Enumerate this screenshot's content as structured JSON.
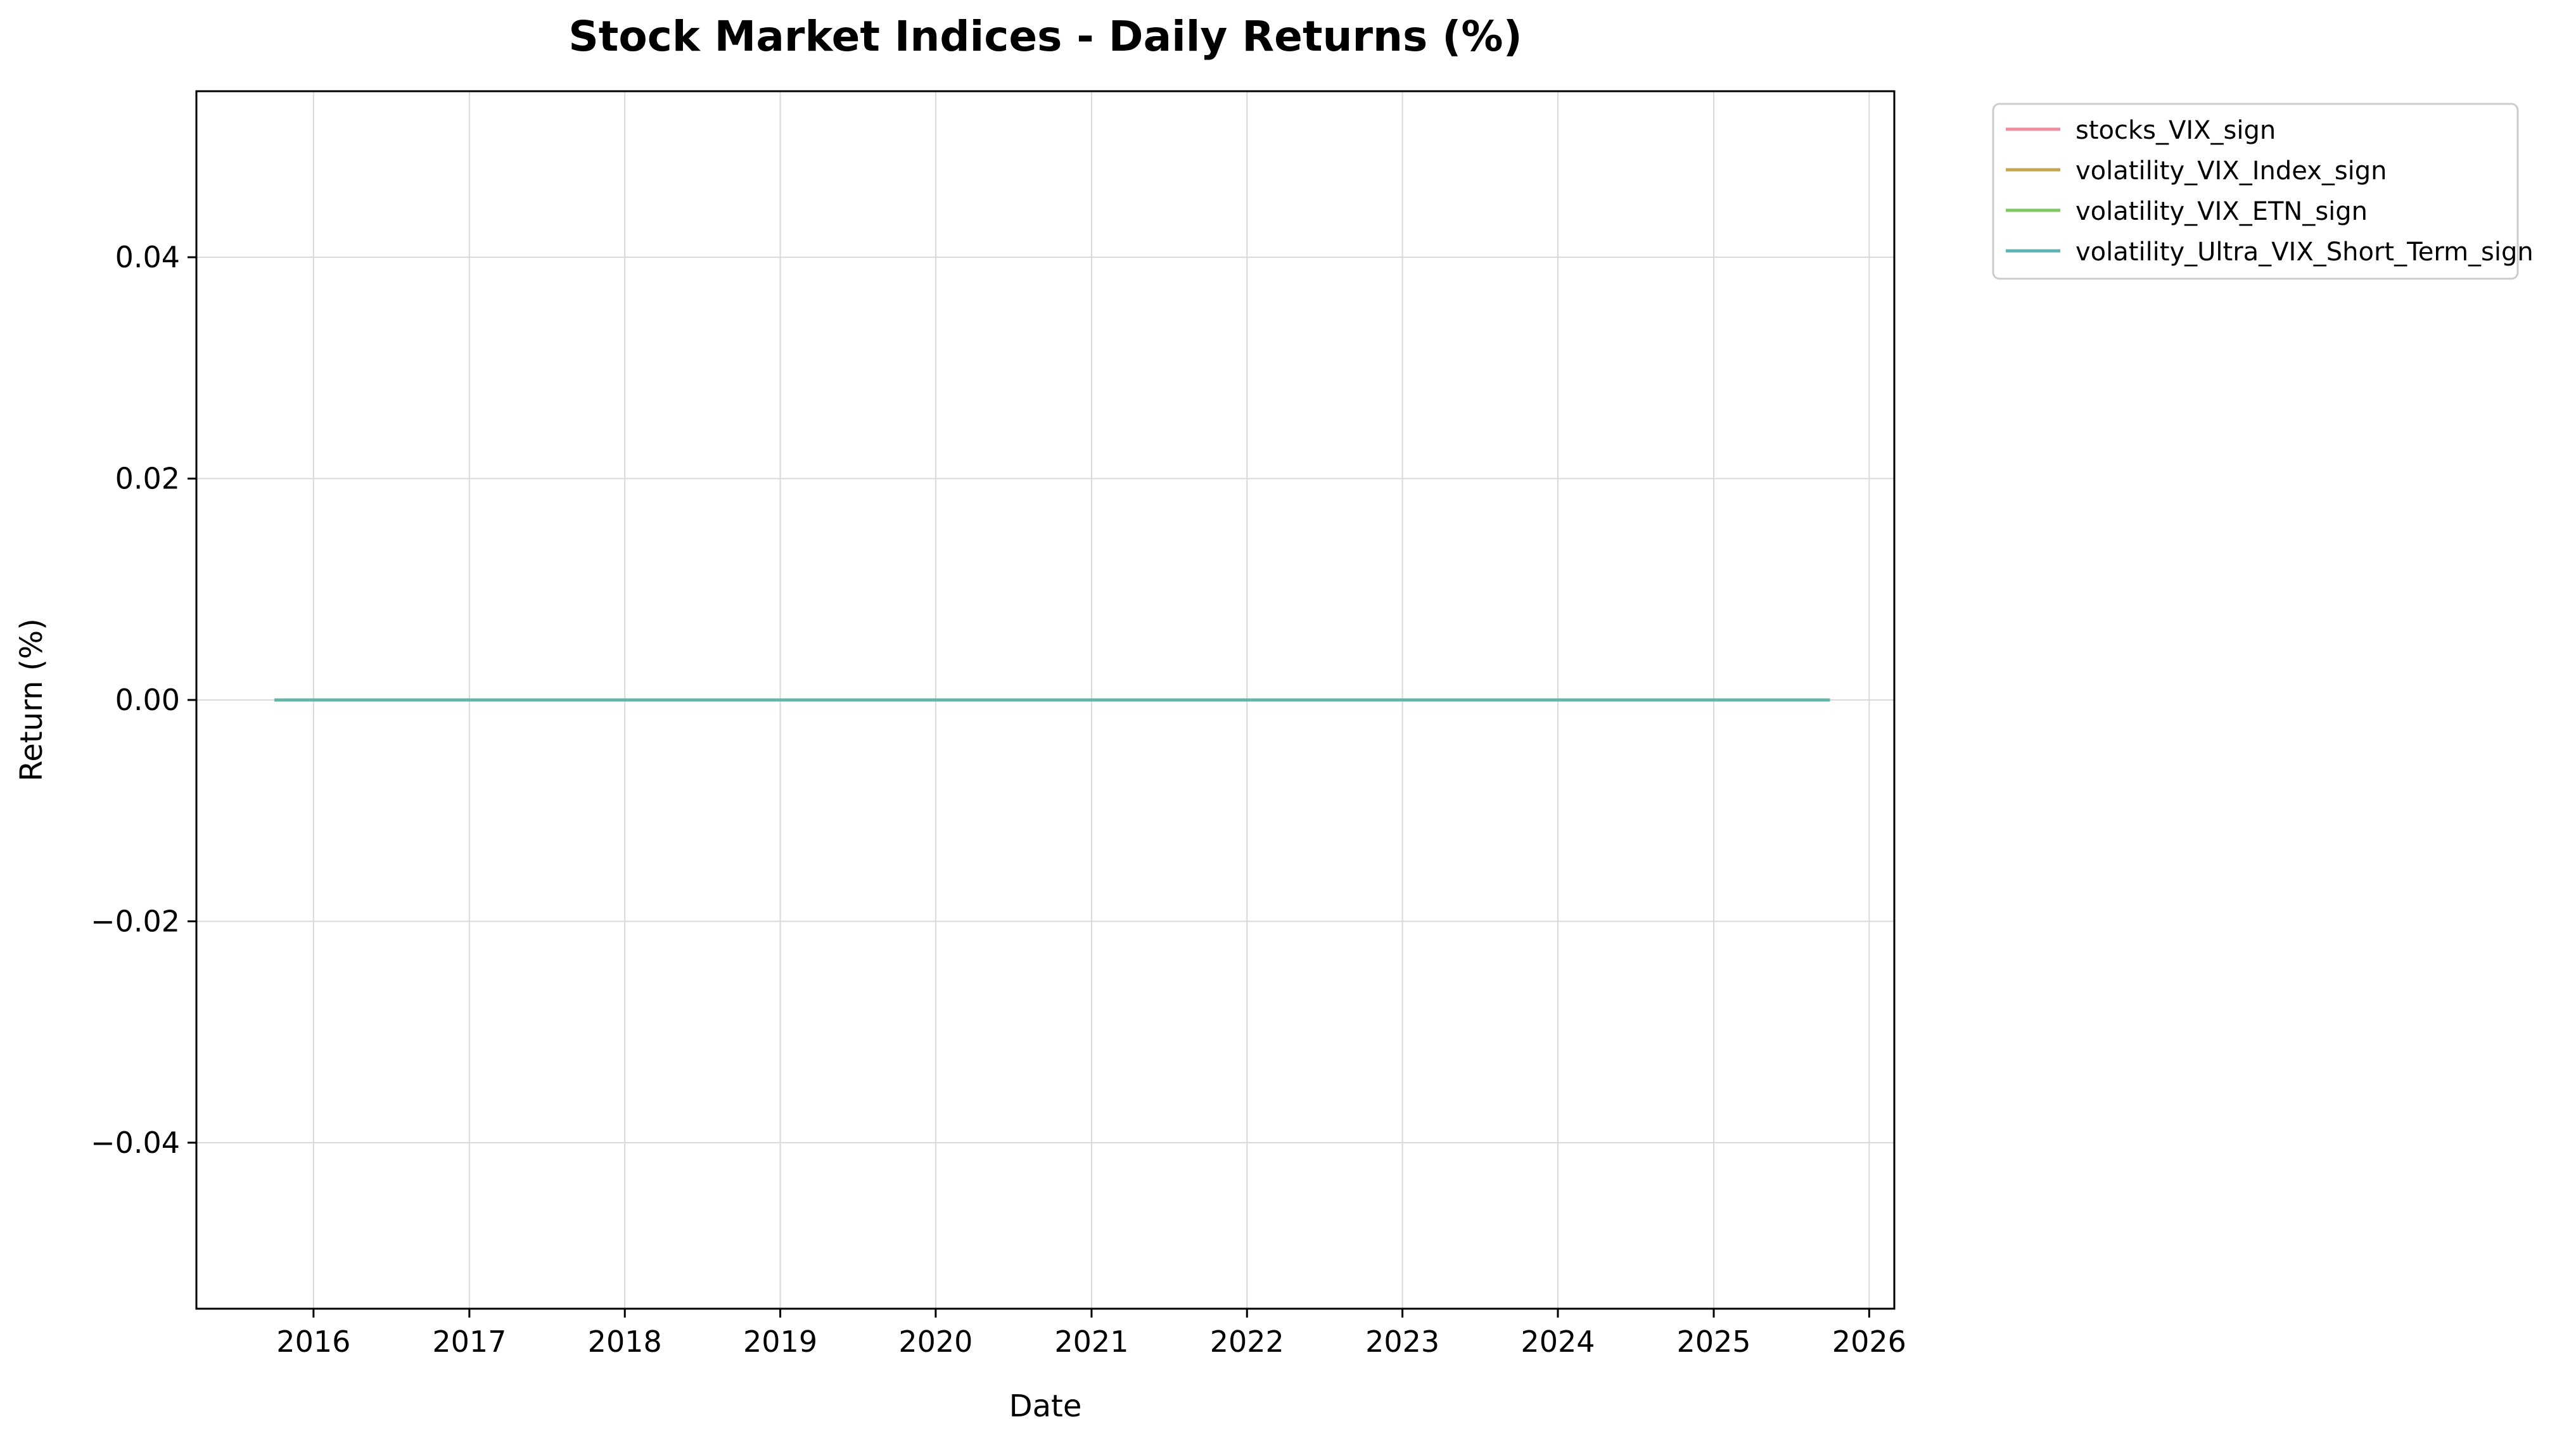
{
  "chart_data": {
    "type": "line",
    "title": "Stock Market Indices - Daily Returns (%)",
    "xlabel": "Date",
    "ylabel": "Return (%)",
    "x_range": [
      "2015-04-01",
      "2026-03-01"
    ],
    "ylim": [
      -0.055,
      0.055
    ],
    "x_ticks": [
      "2016",
      "2017",
      "2018",
      "2019",
      "2020",
      "2021",
      "2022",
      "2023",
      "2024",
      "2025",
      "2026"
    ],
    "y_ticks": [
      {
        "value": 0.04,
        "label": "0.04"
      },
      {
        "value": 0.02,
        "label": "0.02"
      },
      {
        "value": 0.0,
        "label": "0.00"
      },
      {
        "value": -0.02,
        "label": "−0.02"
      },
      {
        "value": -0.04,
        "label": "−0.04"
      }
    ],
    "grid": true,
    "legend_position": "outside-top-right",
    "series": [
      {
        "name": "stocks_VIX_sign",
        "color": "#f08ca0",
        "x": [
          "2015-10-01",
          "2025-10-01"
        ],
        "y": [
          0,
          0
        ]
      },
      {
        "name": "volatility_VIX_Index_sign",
        "color": "#c4a54e",
        "x": [
          "2015-10-01",
          "2025-10-01"
        ],
        "y": [
          0,
          0
        ]
      },
      {
        "name": "volatility_VIX_ETN_sign",
        "color": "#7ec95f",
        "x": [
          "2015-10-01",
          "2025-10-01"
        ],
        "y": [
          0,
          0
        ]
      },
      {
        "name": "volatility_Ultra_VIX_Short_Term_sign",
        "color": "#5fb3b0",
        "x": [
          "2015-10-01",
          "2025-10-01"
        ],
        "y": [
          0,
          0
        ]
      }
    ]
  }
}
